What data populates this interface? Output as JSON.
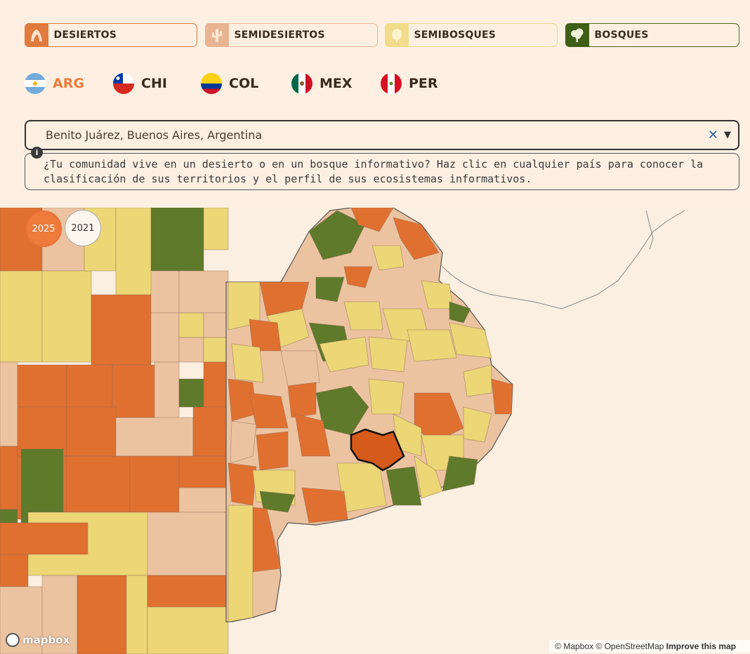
{
  "categories": [
    {
      "label": "DESIERTOS",
      "icon": "desert-icon",
      "color": "#e07a3d"
    },
    {
      "label": "SEMIDESIERTOS",
      "icon": "cactus-icon",
      "color": "#e8b491"
    },
    {
      "label": "SEMIBOSQUES",
      "icon": "bush-icon",
      "color": "#f0dc8a"
    },
    {
      "label": "BOSQUES",
      "icon": "tree-icon",
      "color": "#3f5e16"
    }
  ],
  "countries": [
    {
      "code": "ARG",
      "active": true
    },
    {
      "code": "CHI",
      "active": false
    },
    {
      "code": "COL",
      "active": false
    },
    {
      "code": "MEX",
      "active": false
    },
    {
      "code": "PER",
      "active": false
    }
  ],
  "search": {
    "value": "Benito Juárez, Buenos Aires, Argentina",
    "clear_icon": "close-icon",
    "caret_icon": "chevron-down-icon"
  },
  "info": {
    "text": "¿Tu comunidad vive en un desierto o en un bosque informativo? Haz clic en cualquier país para conocer la clasificación de sus territorios y el perfil de sus ecosistemas informativos."
  },
  "years": [
    {
      "label": "2025",
      "active": true
    },
    {
      "label": "2021",
      "active": false
    }
  ],
  "map": {
    "selected": "Benito Juárez",
    "colors": {
      "desierto": "#e07030",
      "semidesierto": "#ecc3a0",
      "semibosque": "#ecd676",
      "bosque": "#5e7a2a",
      "selected": "#d65a1a",
      "background": "#fbefe1"
    }
  },
  "attribution": {
    "logo": "mapbox",
    "mapbox": "© Mapbox",
    "osm": "© OpenStreetMap",
    "improve": "Improve this map"
  }
}
